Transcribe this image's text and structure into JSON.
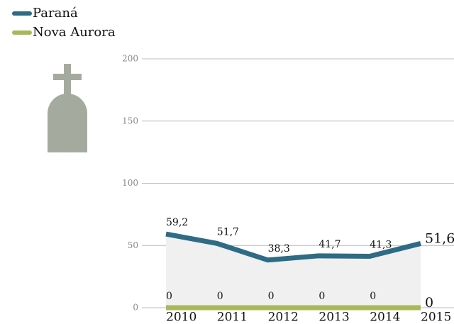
{
  "chart_data": {
    "type": "line",
    "categories": [
      "2010",
      "2011",
      "2012",
      "2013",
      "2014",
      "2015"
    ],
    "series": [
      {
        "name": "Paraná",
        "color": "#2e6b85",
        "values": [
          59.2,
          51.7,
          38.3,
          41.7,
          41.3,
          51.6
        ],
        "value_labels": [
          "59,2",
          "51,7",
          "38,3",
          "41,7",
          "41,3",
          "51,6"
        ]
      },
      {
        "name": "Nova Aurora",
        "color": "#a8b85a",
        "values": [
          0,
          0,
          0,
          0,
          0,
          0
        ]
      }
    ],
    "ylim": [
      0,
      200
    ],
    "yticks": [
      0,
      50,
      100,
      150,
      200
    ],
    "grid": true,
    "legend": "top-left"
  }
}
